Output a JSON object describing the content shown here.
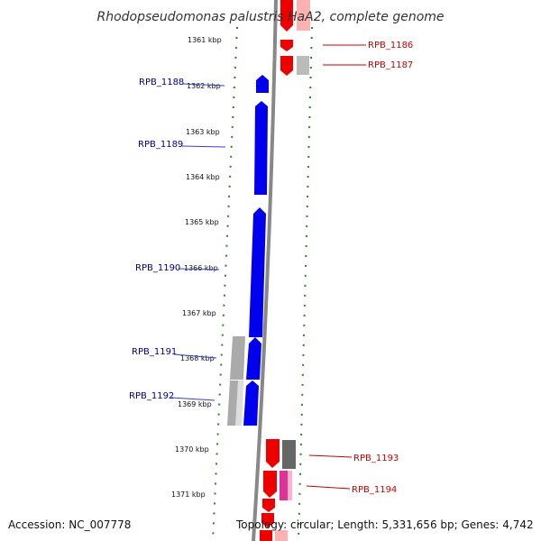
{
  "title": "Rhodopseudomonas palustris HaA2, complete genome",
  "footer": {
    "accession": "Accession: NC_007778",
    "topology": "Topology: circular; Length: 5,331,656 bp; Genes: 4,742"
  },
  "colors": {
    "forward_gene": "#0000ee",
    "reverse_gene": "#ee0000",
    "pseudo_gene": "#aaaaaa",
    "dot_track": "#228822",
    "backbone": "#888888",
    "label_forward": "#000088",
    "label_reverse": "#cc0000"
  },
  "ticks": [
    "1361 kbp",
    "1362 kbp",
    "1363 kbp",
    "1364 kbp",
    "1365 kbp",
    "1366 kbp",
    "1367 kbp",
    "1368 kbp",
    "1369 kbp",
    "1370 kbp",
    "1371 kbp"
  ],
  "genes_forward": [
    {
      "label": "RPB_1188"
    },
    {
      "label": "RPB_1189"
    },
    {
      "label": "RPB_1190"
    },
    {
      "label": "RPB_1191"
    },
    {
      "label": "RPB_1192"
    }
  ],
  "genes_reverse": [
    {
      "label": "RPB_1186"
    },
    {
      "label": "RPB_1187"
    },
    {
      "label": "RPB_1193"
    },
    {
      "label": "RPB_1194"
    }
  ]
}
